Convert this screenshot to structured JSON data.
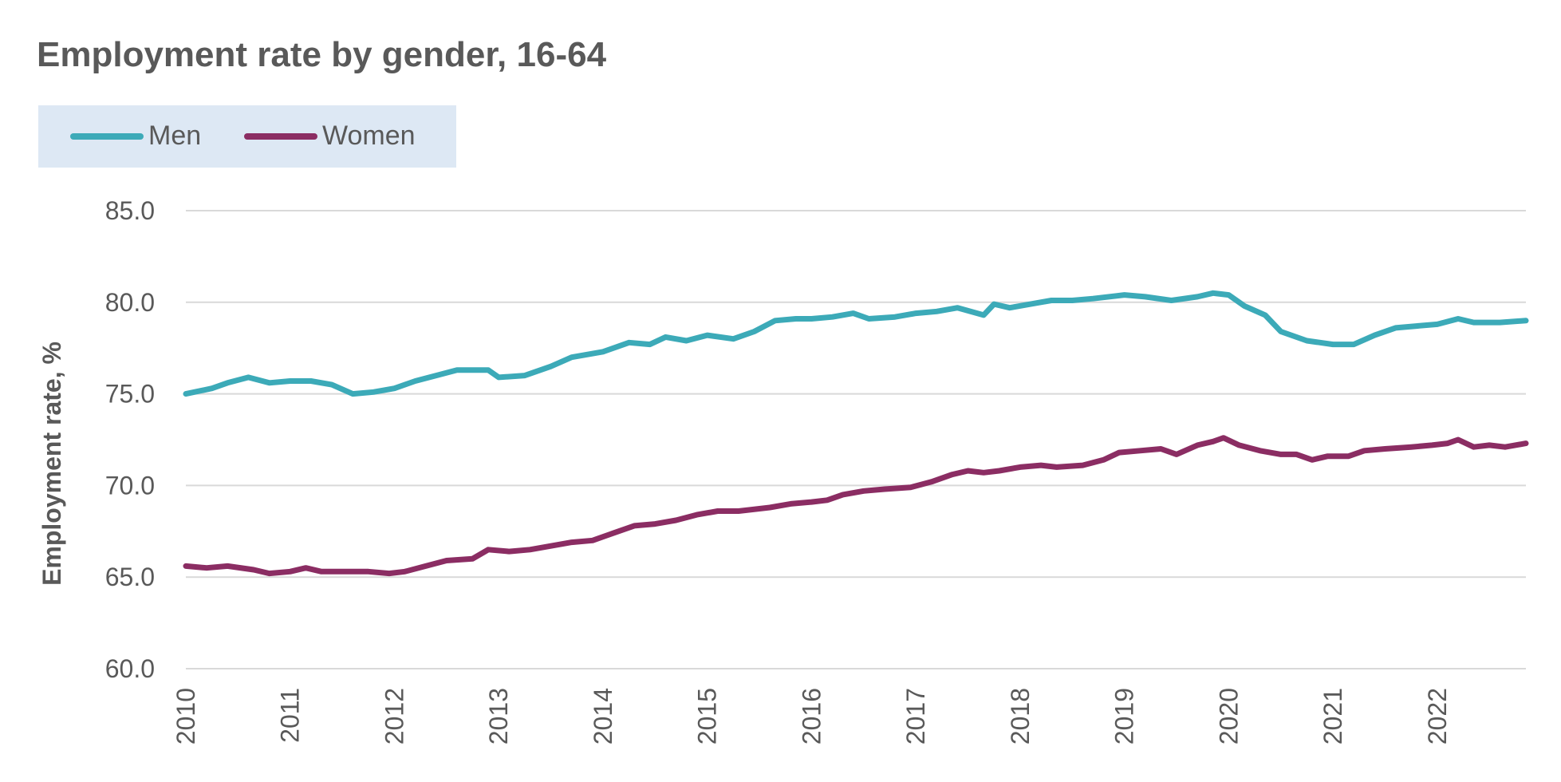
{
  "chart_data": {
    "type": "line",
    "title": "Employment rate by gender, 16-64",
    "xlabel": "",
    "ylabel": "Employment rate, %",
    "xlim": [
      2010,
      2022.85
    ],
    "ylim": [
      60,
      85
    ],
    "yticks": [
      "60.0",
      "65.0",
      "70.0",
      "75.0",
      "80.0",
      "85.0"
    ],
    "xticks": [
      "2010",
      "2011",
      "2012",
      "2013",
      "2014",
      "2015",
      "2016",
      "2017",
      "2018",
      "2019",
      "2020",
      "2021",
      "2022"
    ],
    "grid": "horizontal",
    "legend_position": "top-left",
    "colors": {
      "men": "#3caab8",
      "women": "#8b2d63",
      "grid": "#d9d9d9",
      "text": "#595959",
      "legend_bg": "#dde8f4"
    },
    "series": [
      {
        "name": "Men",
        "color": "#3caab8",
        "points": [
          [
            2010.0,
            75.0
          ],
          [
            2010.25,
            75.3
          ],
          [
            2010.4,
            75.6
          ],
          [
            2010.6,
            75.9
          ],
          [
            2010.8,
            75.6
          ],
          [
            2011.0,
            75.7
          ],
          [
            2011.2,
            75.7
          ],
          [
            2011.4,
            75.5
          ],
          [
            2011.6,
            75.0
          ],
          [
            2011.8,
            75.1
          ],
          [
            2012.0,
            75.3
          ],
          [
            2012.2,
            75.7
          ],
          [
            2012.4,
            76.0
          ],
          [
            2012.6,
            76.3
          ],
          [
            2012.9,
            76.3
          ],
          [
            2013.0,
            75.9
          ],
          [
            2013.25,
            76.0
          ],
          [
            2013.5,
            76.5
          ],
          [
            2013.7,
            77.0
          ],
          [
            2014.0,
            77.3
          ],
          [
            2014.25,
            77.8
          ],
          [
            2014.45,
            77.7
          ],
          [
            2014.6,
            78.1
          ],
          [
            2014.8,
            77.9
          ],
          [
            2015.0,
            78.2
          ],
          [
            2015.25,
            78.0
          ],
          [
            2015.45,
            78.4
          ],
          [
            2015.65,
            79.0
          ],
          [
            2015.85,
            79.1
          ],
          [
            2016.0,
            79.1
          ],
          [
            2016.2,
            79.2
          ],
          [
            2016.4,
            79.4
          ],
          [
            2016.55,
            79.1
          ],
          [
            2016.8,
            79.2
          ],
          [
            2017.0,
            79.4
          ],
          [
            2017.2,
            79.5
          ],
          [
            2017.4,
            79.7
          ],
          [
            2017.65,
            79.3
          ],
          [
            2017.75,
            79.9
          ],
          [
            2017.9,
            79.7
          ],
          [
            2018.1,
            79.9
          ],
          [
            2018.3,
            80.1
          ],
          [
            2018.5,
            80.1
          ],
          [
            2018.7,
            80.2
          ],
          [
            2019.0,
            80.4
          ],
          [
            2019.2,
            80.3
          ],
          [
            2019.45,
            80.1
          ],
          [
            2019.7,
            80.3
          ],
          [
            2019.85,
            80.5
          ],
          [
            2020.0,
            80.4
          ],
          [
            2020.15,
            79.8
          ],
          [
            2020.35,
            79.3
          ],
          [
            2020.5,
            78.4
          ],
          [
            2020.75,
            77.9
          ],
          [
            2021.0,
            77.7
          ],
          [
            2021.2,
            77.7
          ],
          [
            2021.4,
            78.2
          ],
          [
            2021.6,
            78.6
          ],
          [
            2021.8,
            78.7
          ],
          [
            2022.0,
            78.8
          ],
          [
            2022.2,
            79.1
          ],
          [
            2022.35,
            78.9
          ],
          [
            2022.6,
            78.9
          ],
          [
            2022.85,
            79.0
          ]
        ]
      },
      {
        "name": "Women",
        "color": "#8b2d63",
        "points": [
          [
            2010.0,
            65.6
          ],
          [
            2010.2,
            65.5
          ],
          [
            2010.4,
            65.6
          ],
          [
            2010.65,
            65.4
          ],
          [
            2010.8,
            65.2
          ],
          [
            2011.0,
            65.3
          ],
          [
            2011.15,
            65.5
          ],
          [
            2011.3,
            65.3
          ],
          [
            2011.5,
            65.3
          ],
          [
            2011.75,
            65.3
          ],
          [
            2011.95,
            65.2
          ],
          [
            2012.1,
            65.3
          ],
          [
            2012.3,
            65.6
          ],
          [
            2012.5,
            65.9
          ],
          [
            2012.75,
            66.0
          ],
          [
            2012.9,
            66.5
          ],
          [
            2013.1,
            66.4
          ],
          [
            2013.3,
            66.5
          ],
          [
            2013.5,
            66.7
          ],
          [
            2013.7,
            66.9
          ],
          [
            2013.9,
            67.0
          ],
          [
            2014.1,
            67.4
          ],
          [
            2014.3,
            67.8
          ],
          [
            2014.5,
            67.9
          ],
          [
            2014.7,
            68.1
          ],
          [
            2014.9,
            68.4
          ],
          [
            2015.1,
            68.6
          ],
          [
            2015.3,
            68.6
          ],
          [
            2015.6,
            68.8
          ],
          [
            2015.8,
            69.0
          ],
          [
            2016.0,
            69.1
          ],
          [
            2016.15,
            69.2
          ],
          [
            2016.3,
            69.5
          ],
          [
            2016.5,
            69.7
          ],
          [
            2016.7,
            69.8
          ],
          [
            2016.95,
            69.9
          ],
          [
            2017.15,
            70.2
          ],
          [
            2017.35,
            70.6
          ],
          [
            2017.5,
            70.8
          ],
          [
            2017.65,
            70.7
          ],
          [
            2017.8,
            70.8
          ],
          [
            2018.0,
            71.0
          ],
          [
            2018.2,
            71.1
          ],
          [
            2018.35,
            71.0
          ],
          [
            2018.6,
            71.1
          ],
          [
            2018.8,
            71.4
          ],
          [
            2018.95,
            71.8
          ],
          [
            2019.15,
            71.9
          ],
          [
            2019.35,
            72.0
          ],
          [
            2019.5,
            71.7
          ],
          [
            2019.7,
            72.2
          ],
          [
            2019.85,
            72.4
          ],
          [
            2019.95,
            72.6
          ],
          [
            2020.1,
            72.2
          ],
          [
            2020.3,
            71.9
          ],
          [
            2020.5,
            71.7
          ],
          [
            2020.65,
            71.7
          ],
          [
            2020.8,
            71.4
          ],
          [
            2020.95,
            71.6
          ],
          [
            2021.15,
            71.6
          ],
          [
            2021.3,
            71.9
          ],
          [
            2021.5,
            72.0
          ],
          [
            2021.75,
            72.1
          ],
          [
            2021.95,
            72.2
          ],
          [
            2022.1,
            72.3
          ],
          [
            2022.2,
            72.5
          ],
          [
            2022.35,
            72.1
          ],
          [
            2022.5,
            72.2
          ],
          [
            2022.65,
            72.1
          ],
          [
            2022.85,
            72.3
          ]
        ]
      }
    ]
  }
}
